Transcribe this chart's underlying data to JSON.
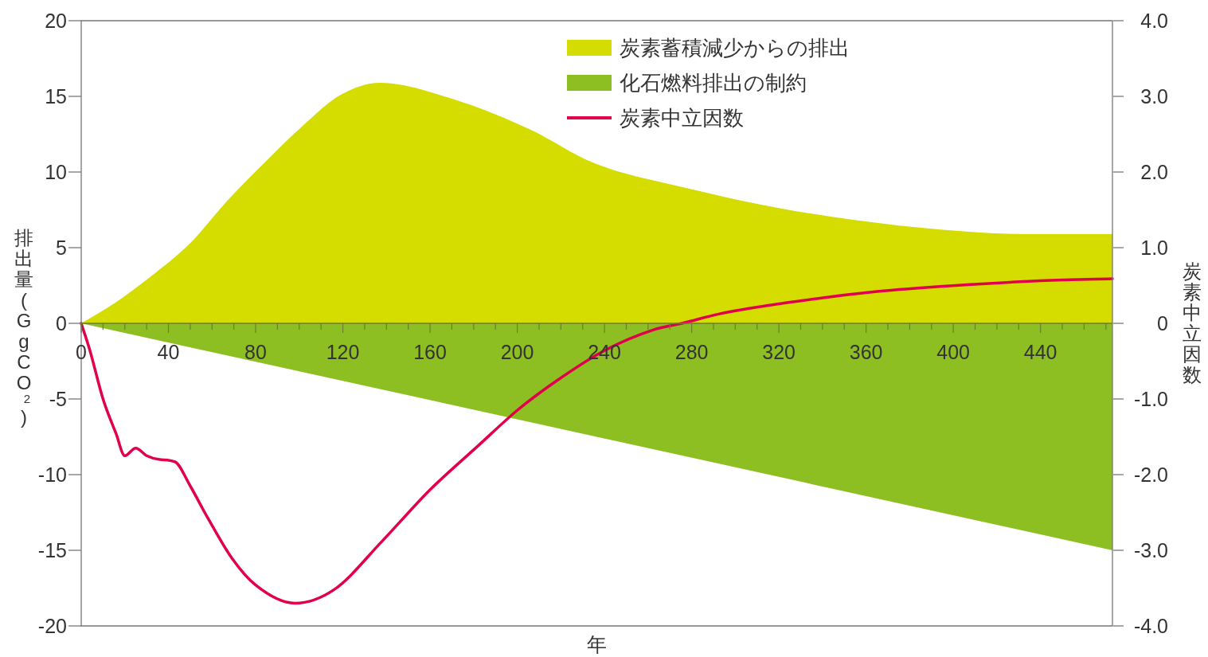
{
  "chart_data": {
    "type": "area",
    "xlabel": "年",
    "ylabel": "排出量(GgCO$_{2}$)",
    "y2label": "炭素中立因数",
    "xlim": [
      0,
      473
    ],
    "xticks": [
      0,
      {
        "value": 10,
        "label": null
      },
      {
        "value": 20,
        "label": null
      },
      {
        "value": 30,
        "label": null
      },
      40,
      {
        "value": 50,
        "label": null
      },
      {
        "value": 60,
        "label": null
      },
      {
        "value": 70,
        "label": null
      },
      80,
      {
        "value": 90,
        "label": null
      },
      {
        "value": 100,
        "label": null
      },
      {
        "value": 110,
        "label": null
      },
      120,
      {
        "value": 130,
        "label": null
      },
      {
        "value": 140,
        "label": null
      },
      {
        "value": 150,
        "label": null
      },
      160,
      {
        "value": 170,
        "label": null
      },
      {
        "value": 180,
        "label": null
      },
      {
        "value": 190,
        "label": null
      },
      200,
      {
        "value": 210,
        "label": null
      },
      {
        "value": 220,
        "label": null
      },
      {
        "value": 230,
        "label": null
      },
      240,
      {
        "value": 250,
        "label": null
      },
      {
        "value": 260,
        "label": null
      },
      {
        "value": 270,
        "label": null
      },
      280,
      {
        "value": 290,
        "label": null
      },
      {
        "value": 300,
        "label": null
      },
      {
        "value": 310,
        "label": null
      },
      320,
      {
        "value": 330,
        "label": null
      },
      {
        "value": 340,
        "label": null
      },
      {
        "value": 350,
        "label": null
      },
      360,
      {
        "value": 370,
        "label": null
      },
      {
        "value": 380,
        "label": null
      },
      {
        "value": 390,
        "label": null
      },
      400,
      {
        "value": 410,
        "label": null
      },
      {
        "value": 420,
        "label": null
      },
      {
        "value": 430,
        "label": null
      },
      440,
      {
        "value": 450,
        "label": null
      },
      {
        "value": 460,
        "label": null
      },
      {
        "value": 470,
        "label": null
      }
    ],
    "ylim": [
      -20,
      20
    ],
    "yticks": [
      -20,
      -15,
      -10,
      -5,
      0,
      5,
      10,
      15,
      20
    ],
    "y2lim": [
      -4,
      4
    ],
    "y2ticks": [
      {
        "value": -4,
        "label": "-4.0"
      },
      {
        "value": -3,
        "label": "-3.0"
      },
      {
        "value": -2,
        "label": "-2.0"
      },
      {
        "value": -1,
        "label": "-1.0"
      },
      0,
      {
        "value": 1,
        "label": "1.0"
      },
      {
        "value": 2,
        "label": "2.0"
      },
      {
        "value": 3,
        "label": "3.0"
      },
      {
        "value": 4,
        "label": "4.0"
      }
    ],
    "legend": "top",
    "series": [
      {
        "name": "炭素蓄積減少からの排出",
        "color": "#d4dc00",
        "x": [
          0,
          15,
          32,
          50,
          67,
          84,
          102,
          119,
          137,
          171,
          206,
          235,
          279,
          317,
          356,
          394,
          432,
          473
        ],
        "values": [
          0,
          1.3,
          3.1,
          5.3,
          8.1,
          10.6,
          13.1,
          15.1,
          15.9,
          14.8,
          12.8,
          10.6,
          8.9,
          7.7,
          6.8,
          6.2,
          5.9,
          5.9
        ]
      },
      {
        "name": "化石燃料排出の制約",
        "color": "#8dbf22",
        "x": [
          0,
          473
        ],
        "values": [
          0,
          -15
        ]
      },
      {
        "name": "炭素中立因数",
        "type": "line",
        "axis": "y2",
        "color": "#e0004d",
        "x": [
          0,
          4,
          10,
          16,
          20,
          25,
          30,
          36,
          43,
          50,
          58,
          69,
          80,
          98,
          116,
          138,
          160,
          182,
          200,
          218,
          240,
          262,
          277,
          292,
          328,
          365,
          401,
          438,
          473
        ],
        "values": [
          0,
          -0.36,
          -1.0,
          -1.46,
          -1.75,
          -1.65,
          -1.75,
          -1.8,
          -1.83,
          -2.15,
          -2.57,
          -3.1,
          -3.46,
          -3.7,
          -3.52,
          -2.88,
          -2.2,
          -1.62,
          -1.15,
          -0.76,
          -0.36,
          -0.09,
          0.01,
          0.12,
          0.29,
          0.42,
          0.5,
          0.56,
          0.59
        ]
      }
    ]
  }
}
